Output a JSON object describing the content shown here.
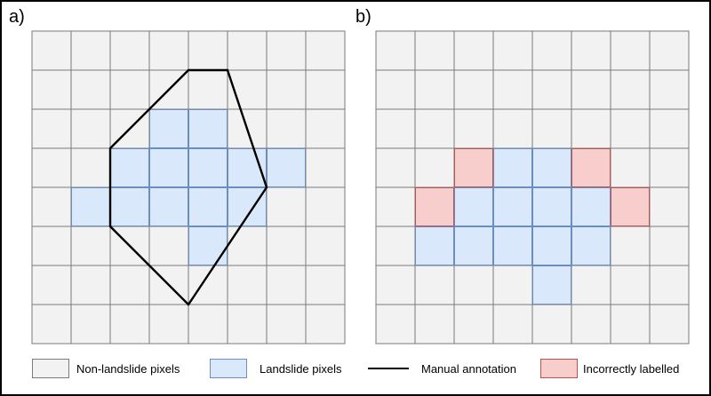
{
  "panels": [
    {
      "label": "a)"
    },
    {
      "label": "b)"
    }
  ],
  "grid": {
    "rows": 8,
    "cols": 8
  },
  "colors": {
    "non_landslide": "#f2f2f2",
    "landslide": "#dae8fc",
    "landslide_border": "#6c8ebf",
    "incorrect": "#f8cecc",
    "incorrect_border": "#b85450",
    "grid_line": "#7a7a7a",
    "annotation": "#000000"
  },
  "panel_a": {
    "landslide_cells": [
      [
        1,
        4
      ],
      [
        2,
        3
      ],
      [
        2,
        4
      ],
      [
        3,
        2
      ],
      [
        3,
        3
      ],
      [
        3,
        4
      ],
      [
        4,
        2
      ],
      [
        4,
        3
      ],
      [
        4,
        4
      ],
      [
        4,
        5
      ],
      [
        5,
        3
      ],
      [
        5,
        4
      ],
      [
        6,
        3
      ]
    ],
    "annotation_polygon_grid": [
      [
        4,
        1
      ],
      [
        5,
        1
      ],
      [
        6,
        4
      ],
      [
        4,
        7
      ],
      [
        2,
        5
      ],
      [
        2,
        3
      ]
    ]
  },
  "panel_b": {
    "landslide_cells": [
      [
        1,
        5
      ],
      [
        2,
        4
      ],
      [
        2,
        5
      ],
      [
        3,
        3
      ],
      [
        3,
        4
      ],
      [
        3,
        5
      ],
      [
        4,
        3
      ],
      [
        4,
        4
      ],
      [
        4,
        5
      ],
      [
        4,
        6
      ],
      [
        5,
        4
      ],
      [
        5,
        5
      ]
    ],
    "incorrect_cells": [
      [
        1,
        4
      ],
      [
        2,
        3
      ],
      [
        5,
        3
      ],
      [
        6,
        4
      ]
    ]
  },
  "legend": {
    "non_landslide": "Non-landslide pixels",
    "landslide": "Landslide pixels",
    "annotation": "Manual annotation",
    "incorrect": "Incorrectly labelled"
  }
}
